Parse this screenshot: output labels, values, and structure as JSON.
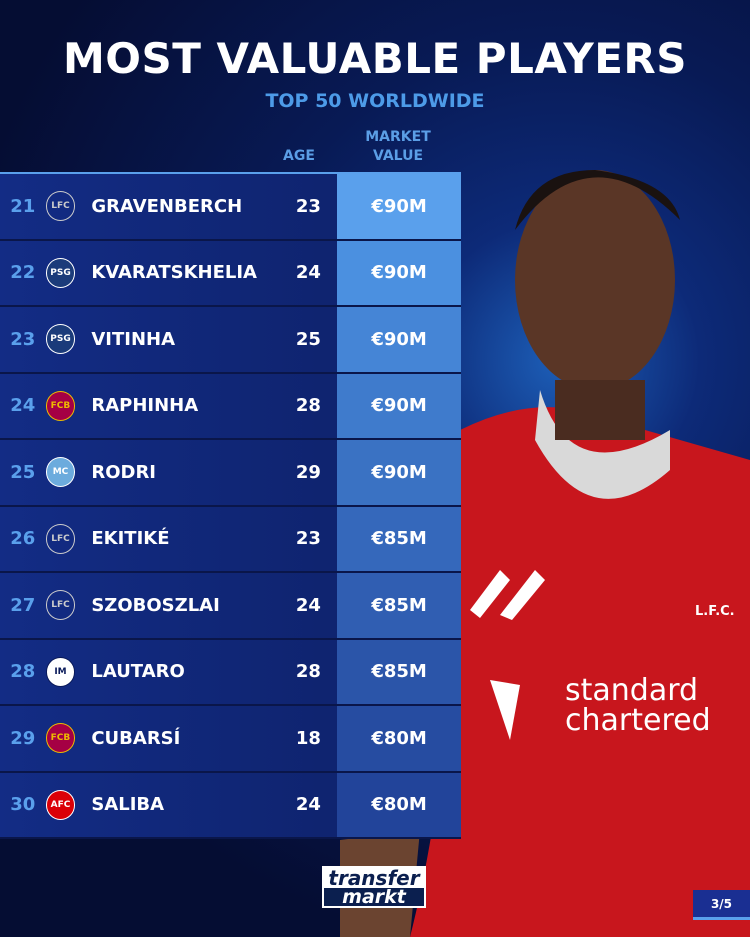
{
  "header": {
    "title": "MOST VALUABLE PLAYERS",
    "subtitle": "TOP 50 WORLDWIDE"
  },
  "columns": {
    "age": "AGE",
    "market_value_1": "MARKET",
    "market_value_2": "VALUE"
  },
  "rows": [
    {
      "rank": "21",
      "club_icon": "liverpool-crest",
      "name": "GRAVENBERCH",
      "age": "23",
      "value": "€90M",
      "value_bg": "#5aa0ec"
    },
    {
      "rank": "22",
      "club_icon": "psg-crest",
      "name": "KVARATSKHELIA",
      "age": "24",
      "value": "€90M",
      "value_bg": "#4b90e0"
    },
    {
      "rank": "23",
      "club_icon": "psg-crest",
      "name": "VITINHA",
      "age": "25",
      "value": "€90M",
      "value_bg": "#4585d6"
    },
    {
      "rank": "24",
      "club_icon": "barcelona-crest",
      "name": "RAPHINHA",
      "age": "28",
      "value": "€90M",
      "value_bg": "#3f7bcc"
    },
    {
      "rank": "25",
      "club_icon": "mancity-crest",
      "name": "RODRI",
      "age": "29",
      "value": "€90M",
      "value_bg": "#3a72c3"
    },
    {
      "rank": "26",
      "club_icon": "liverpool-crest",
      "name": "EKITIKÉ",
      "age": "23",
      "value": "€85M",
      "value_bg": "#3568bb"
    },
    {
      "rank": "27",
      "club_icon": "liverpool-crest",
      "name": "SZOBOSZLAI",
      "age": "24",
      "value": "€85M",
      "value_bg": "#305eb2"
    },
    {
      "rank": "28",
      "club_icon": "inter-crest",
      "name": "LAUTARO",
      "age": "28",
      "value": "€85M",
      "value_bg": "#2b55a9"
    },
    {
      "rank": "29",
      "club_icon": "barcelona-crest",
      "name": "CUBARSÍ",
      "age": "18",
      "value": "€80M",
      "value_bg": "#264ca1"
    },
    {
      "rank": "30",
      "club_icon": "arsenal-crest",
      "name": "SALIBA",
      "age": "24",
      "value": "€80M",
      "value_bg": "#22449a"
    }
  ],
  "shirt": {
    "club_badge": "L.F.C.",
    "sponsor_1": "standard",
    "sponsor_2": "chartered"
  },
  "logo": {
    "line1": "transfer",
    "line2": "markt"
  },
  "page_indicator": "3/5"
}
